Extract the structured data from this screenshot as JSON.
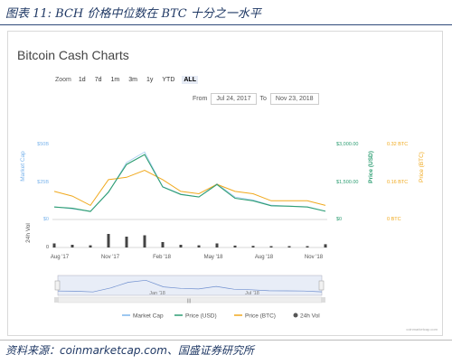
{
  "caption": "图表 11: BCH 价格中位数在 BTC 十分之一水平",
  "source": "资料来源：coinmarketcap.com、国盛证券研究所",
  "colors": {
    "market_cap": "#7cb5ec",
    "price_usd": "#2e9e73",
    "price_btc": "#f0a91e",
    "volume": "#444444"
  },
  "card": {
    "title": "Bitcoin Cash Charts",
    "zoom_label": "Zoom",
    "zoom_options": [
      "1d",
      "7d",
      "1m",
      "3m",
      "1y",
      "YTD",
      "ALL"
    ],
    "zoom_selected": "ALL",
    "from_label": "From",
    "from_value": "Jul 24, 2017",
    "to_label": "To",
    "to_value": "Nov 23, 2018",
    "watermark": "coinmarketcap.com"
  },
  "chart_data": {
    "type": "line",
    "x": [
      "Aug '17",
      "Sep '17",
      "Oct '17",
      "Nov '17",
      "Dec '17",
      "Jan '18",
      "Feb '18",
      "Mar '18",
      "Apr '18",
      "May '18",
      "Jun '18",
      "Jul '18",
      "Aug '18",
      "Sep '18",
      "Oct '18",
      "Nov '18"
    ],
    "series": [
      {
        "name": "Market Cap",
        "axis": "Market Cap",
        "values": [
          8.5,
          7.0,
          5.5,
          18.0,
          38.0,
          45.0,
          22.0,
          17.0,
          15.0,
          24.0,
          15.0,
          13.0,
          9.5,
          9.0,
          8.5,
          5.5
        ],
        "unit": "$B"
      },
      {
        "name": "Price (USD)",
        "axis": "Price (USD)",
        "values": [
          500,
          450,
          320,
          1100,
          2200,
          2600,
          1300,
          1000,
          900,
          1400,
          850,
          750,
          550,
          530,
          500,
          330
        ]
      },
      {
        "name": "Price (BTC)",
        "axis": "Price (BTC)",
        "values": [
          0.12,
          0.1,
          0.06,
          0.17,
          0.18,
          0.21,
          0.17,
          0.12,
          0.11,
          0.15,
          0.12,
          0.11,
          0.08,
          0.08,
          0.08,
          0.06
        ]
      },
      {
        "name": "24h Vol",
        "axis": "24h Vol",
        "values": [
          1.5,
          1.0,
          0.8,
          5.0,
          4.0,
          4.5,
          2.0,
          1.0,
          0.8,
          1.5,
          0.7,
          0.6,
          0.5,
          0.5,
          0.5,
          1.2
        ],
        "unit": "$B"
      }
    ],
    "axes": {
      "market_cap": {
        "label": "Market Cap",
        "ticks": [
          "$0",
          "$25B",
          "$50B"
        ]
      },
      "price_usd": {
        "label": "Price (USD)",
        "ticks": [
          "$0",
          "$1,500.00",
          "$3,000.00"
        ],
        "ylim": [
          0,
          3000
        ]
      },
      "price_btc": {
        "label": "Price (BTC)",
        "ticks": [
          "0 BTC",
          "0.16 BTC",
          "0.32 BTC"
        ],
        "ylim": [
          0,
          0.32
        ]
      },
      "volume": {
        "label": "24h Vol",
        "ticks": [
          "0"
        ]
      }
    },
    "x_ticks": [
      "Aug '17",
      "Nov '17",
      "Feb '18",
      "May '18",
      "Aug '18",
      "Nov '18"
    ],
    "navigator_ticks": [
      "Jan '18",
      "Jul '18"
    ],
    "legend_position": "bottom-center"
  }
}
